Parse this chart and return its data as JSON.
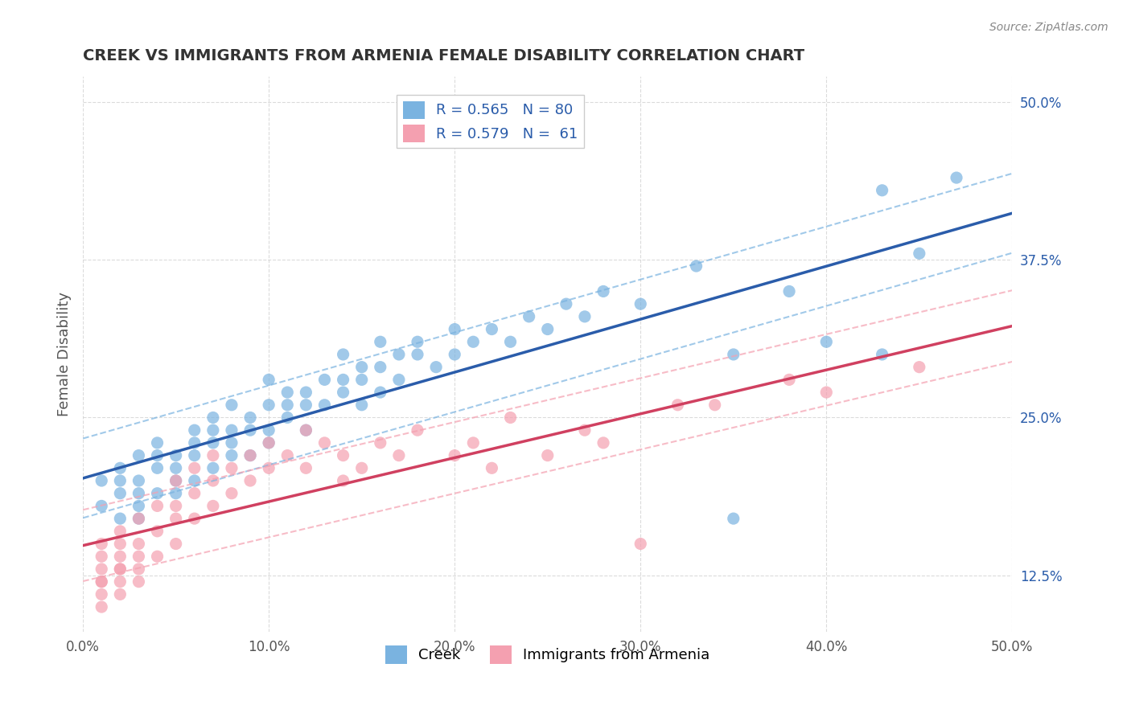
{
  "title": "CREEK VS IMMIGRANTS FROM ARMENIA FEMALE DISABILITY CORRELATION CHART",
  "source": "Source: ZipAtlas.com",
  "xlabel": "",
  "ylabel": "Female Disability",
  "xlim": [
    0.0,
    0.5
  ],
  "ylim": [
    0.08,
    0.52
  ],
  "xticks": [
    0.0,
    0.1,
    0.2,
    0.3,
    0.4,
    0.5
  ],
  "yticks": [
    0.125,
    0.25,
    0.375,
    0.5
  ],
  "xticklabels": [
    "0.0%",
    "10.0%",
    "20.0%",
    "30.0%",
    "40.0%",
    "50.0%"
  ],
  "yticklabels": [
    "12.5%",
    "25.0%",
    "37.5%",
    "50.0%"
  ],
  "creek_R": 0.565,
  "creek_N": 80,
  "armenia_R": 0.579,
  "armenia_N": 61,
  "creek_color": "#7ab3e0",
  "armenia_color": "#f4a0b0",
  "creek_line_color": "#2a5caa",
  "armenia_line_color": "#d04060",
  "creek_scatter": [
    [
      0.01,
      0.18
    ],
    [
      0.01,
      0.2
    ],
    [
      0.02,
      0.19
    ],
    [
      0.02,
      0.21
    ],
    [
      0.02,
      0.17
    ],
    [
      0.02,
      0.2
    ],
    [
      0.03,
      0.18
    ],
    [
      0.03,
      0.22
    ],
    [
      0.03,
      0.2
    ],
    [
      0.03,
      0.19
    ],
    [
      0.03,
      0.17
    ],
    [
      0.04,
      0.21
    ],
    [
      0.04,
      0.19
    ],
    [
      0.04,
      0.23
    ],
    [
      0.04,
      0.22
    ],
    [
      0.05,
      0.2
    ],
    [
      0.05,
      0.19
    ],
    [
      0.05,
      0.22
    ],
    [
      0.05,
      0.21
    ],
    [
      0.06,
      0.2
    ],
    [
      0.06,
      0.24
    ],
    [
      0.06,
      0.22
    ],
    [
      0.06,
      0.23
    ],
    [
      0.07,
      0.24
    ],
    [
      0.07,
      0.21
    ],
    [
      0.07,
      0.25
    ],
    [
      0.07,
      0.23
    ],
    [
      0.08,
      0.22
    ],
    [
      0.08,
      0.24
    ],
    [
      0.08,
      0.26
    ],
    [
      0.08,
      0.23
    ],
    [
      0.09,
      0.22
    ],
    [
      0.09,
      0.24
    ],
    [
      0.09,
      0.25
    ],
    [
      0.1,
      0.23
    ],
    [
      0.1,
      0.24
    ],
    [
      0.1,
      0.26
    ],
    [
      0.1,
      0.28
    ],
    [
      0.11,
      0.25
    ],
    [
      0.11,
      0.27
    ],
    [
      0.11,
      0.26
    ],
    [
      0.12,
      0.26
    ],
    [
      0.12,
      0.27
    ],
    [
      0.12,
      0.24
    ],
    [
      0.13,
      0.26
    ],
    [
      0.13,
      0.28
    ],
    [
      0.14,
      0.27
    ],
    [
      0.14,
      0.28
    ],
    [
      0.14,
      0.3
    ],
    [
      0.15,
      0.28
    ],
    [
      0.15,
      0.26
    ],
    [
      0.15,
      0.29
    ],
    [
      0.16,
      0.27
    ],
    [
      0.16,
      0.29
    ],
    [
      0.16,
      0.31
    ],
    [
      0.17,
      0.3
    ],
    [
      0.17,
      0.28
    ],
    [
      0.18,
      0.3
    ],
    [
      0.18,
      0.31
    ],
    [
      0.19,
      0.29
    ],
    [
      0.2,
      0.3
    ],
    [
      0.2,
      0.32
    ],
    [
      0.21,
      0.31
    ],
    [
      0.22,
      0.32
    ],
    [
      0.23,
      0.31
    ],
    [
      0.24,
      0.33
    ],
    [
      0.25,
      0.32
    ],
    [
      0.26,
      0.34
    ],
    [
      0.27,
      0.33
    ],
    [
      0.28,
      0.35
    ],
    [
      0.3,
      0.34
    ],
    [
      0.33,
      0.37
    ],
    [
      0.35,
      0.17
    ],
    [
      0.35,
      0.3
    ],
    [
      0.38,
      0.35
    ],
    [
      0.4,
      0.31
    ],
    [
      0.43,
      0.43
    ],
    [
      0.43,
      0.3
    ],
    [
      0.45,
      0.38
    ],
    [
      0.47,
      0.44
    ]
  ],
  "armenia_scatter": [
    [
      0.01,
      0.14
    ],
    [
      0.01,
      0.12
    ],
    [
      0.01,
      0.13
    ],
    [
      0.01,
      0.15
    ],
    [
      0.01,
      0.11
    ],
    [
      0.01,
      0.1
    ],
    [
      0.01,
      0.12
    ],
    [
      0.02,
      0.13
    ],
    [
      0.02,
      0.14
    ],
    [
      0.02,
      0.12
    ],
    [
      0.02,
      0.15
    ],
    [
      0.02,
      0.11
    ],
    [
      0.02,
      0.13
    ],
    [
      0.02,
      0.16
    ],
    [
      0.03,
      0.14
    ],
    [
      0.03,
      0.13
    ],
    [
      0.03,
      0.15
    ],
    [
      0.03,
      0.17
    ],
    [
      0.03,
      0.12
    ],
    [
      0.04,
      0.16
    ],
    [
      0.04,
      0.14
    ],
    [
      0.04,
      0.18
    ],
    [
      0.05,
      0.17
    ],
    [
      0.05,
      0.15
    ],
    [
      0.05,
      0.2
    ],
    [
      0.05,
      0.18
    ],
    [
      0.06,
      0.19
    ],
    [
      0.06,
      0.17
    ],
    [
      0.06,
      0.21
    ],
    [
      0.07,
      0.18
    ],
    [
      0.07,
      0.2
    ],
    [
      0.07,
      0.22
    ],
    [
      0.08,
      0.19
    ],
    [
      0.08,
      0.21
    ],
    [
      0.09,
      0.22
    ],
    [
      0.09,
      0.2
    ],
    [
      0.1,
      0.21
    ],
    [
      0.1,
      0.23
    ],
    [
      0.11,
      0.22
    ],
    [
      0.12,
      0.21
    ],
    [
      0.12,
      0.24
    ],
    [
      0.13,
      0.23
    ],
    [
      0.14,
      0.2
    ],
    [
      0.14,
      0.22
    ],
    [
      0.15,
      0.21
    ],
    [
      0.16,
      0.23
    ],
    [
      0.17,
      0.22
    ],
    [
      0.18,
      0.24
    ],
    [
      0.2,
      0.22
    ],
    [
      0.21,
      0.23
    ],
    [
      0.22,
      0.21
    ],
    [
      0.23,
      0.25
    ],
    [
      0.25,
      0.22
    ],
    [
      0.27,
      0.24
    ],
    [
      0.28,
      0.23
    ],
    [
      0.3,
      0.15
    ],
    [
      0.32,
      0.26
    ],
    [
      0.34,
      0.26
    ],
    [
      0.38,
      0.28
    ],
    [
      0.4,
      0.27
    ],
    [
      0.45,
      0.29
    ]
  ],
  "background_color": "#ffffff",
  "grid_color": "#cccccc",
  "title_color": "#333333",
  "source_color": "#888888",
  "legend_label_creek": "Creek",
  "legend_label_armenia": "Immigrants from Armenia"
}
